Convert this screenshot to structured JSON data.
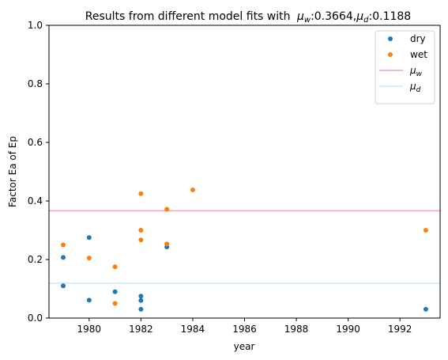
{
  "chart_data": {
    "type": "scatter",
    "title": "Results from different model fits with",
    "title_math": {
      "mu_w_label": "μ",
      "mu_w_sub": "w",
      "mu_w_value": ":0.3664,",
      "mu_d_label": "μ",
      "mu_d_sub": "d",
      "mu_d_value": ":0.1188"
    },
    "xlabel": "year",
    "ylabel": "Factor Ea of Ep",
    "xlim": [
      1978.45,
      1993.55
    ],
    "ylim": [
      0.0,
      1.0
    ],
    "xticks": [
      "1980",
      "1982",
      "1984",
      "1986",
      "1988",
      "1990",
      "1992"
    ],
    "yticks": [
      "0.0",
      "0.2",
      "0.4",
      "0.6",
      "0.8",
      "1.0"
    ],
    "grid": false,
    "legend_position": "top-right",
    "series": [
      {
        "name": "dry",
        "color": "#1f77b4",
        "points": [
          [
            1979,
            0.207
          ],
          [
            1979,
            0.11
          ],
          [
            1980,
            0.275
          ],
          [
            1980,
            0.061
          ],
          [
            1981,
            0.09
          ],
          [
            1982,
            0.075
          ],
          [
            1982,
            0.06
          ],
          [
            1982,
            0.03
          ],
          [
            1983,
            0.243
          ],
          [
            1993,
            0.03
          ]
        ]
      },
      {
        "name": "wet",
        "color": "#ff7f0e",
        "points": [
          [
            1979,
            0.25
          ],
          [
            1980,
            0.205
          ],
          [
            1981,
            0.175
          ],
          [
            1981,
            0.05
          ],
          [
            1982,
            0.425
          ],
          [
            1982,
            0.3
          ],
          [
            1982,
            0.267
          ],
          [
            1983,
            0.372
          ],
          [
            1983,
            0.253
          ],
          [
            1984,
            0.438
          ],
          [
            1993,
            0.3
          ]
        ]
      }
    ],
    "hlines": [
      {
        "name_base": "μ",
        "name_sub": "w",
        "value": 0.3664,
        "color": "#f4a6aa"
      },
      {
        "name_base": "μ",
        "name_sub": "d",
        "value": 0.1188,
        "color": "#c9e6f6"
      }
    ]
  }
}
